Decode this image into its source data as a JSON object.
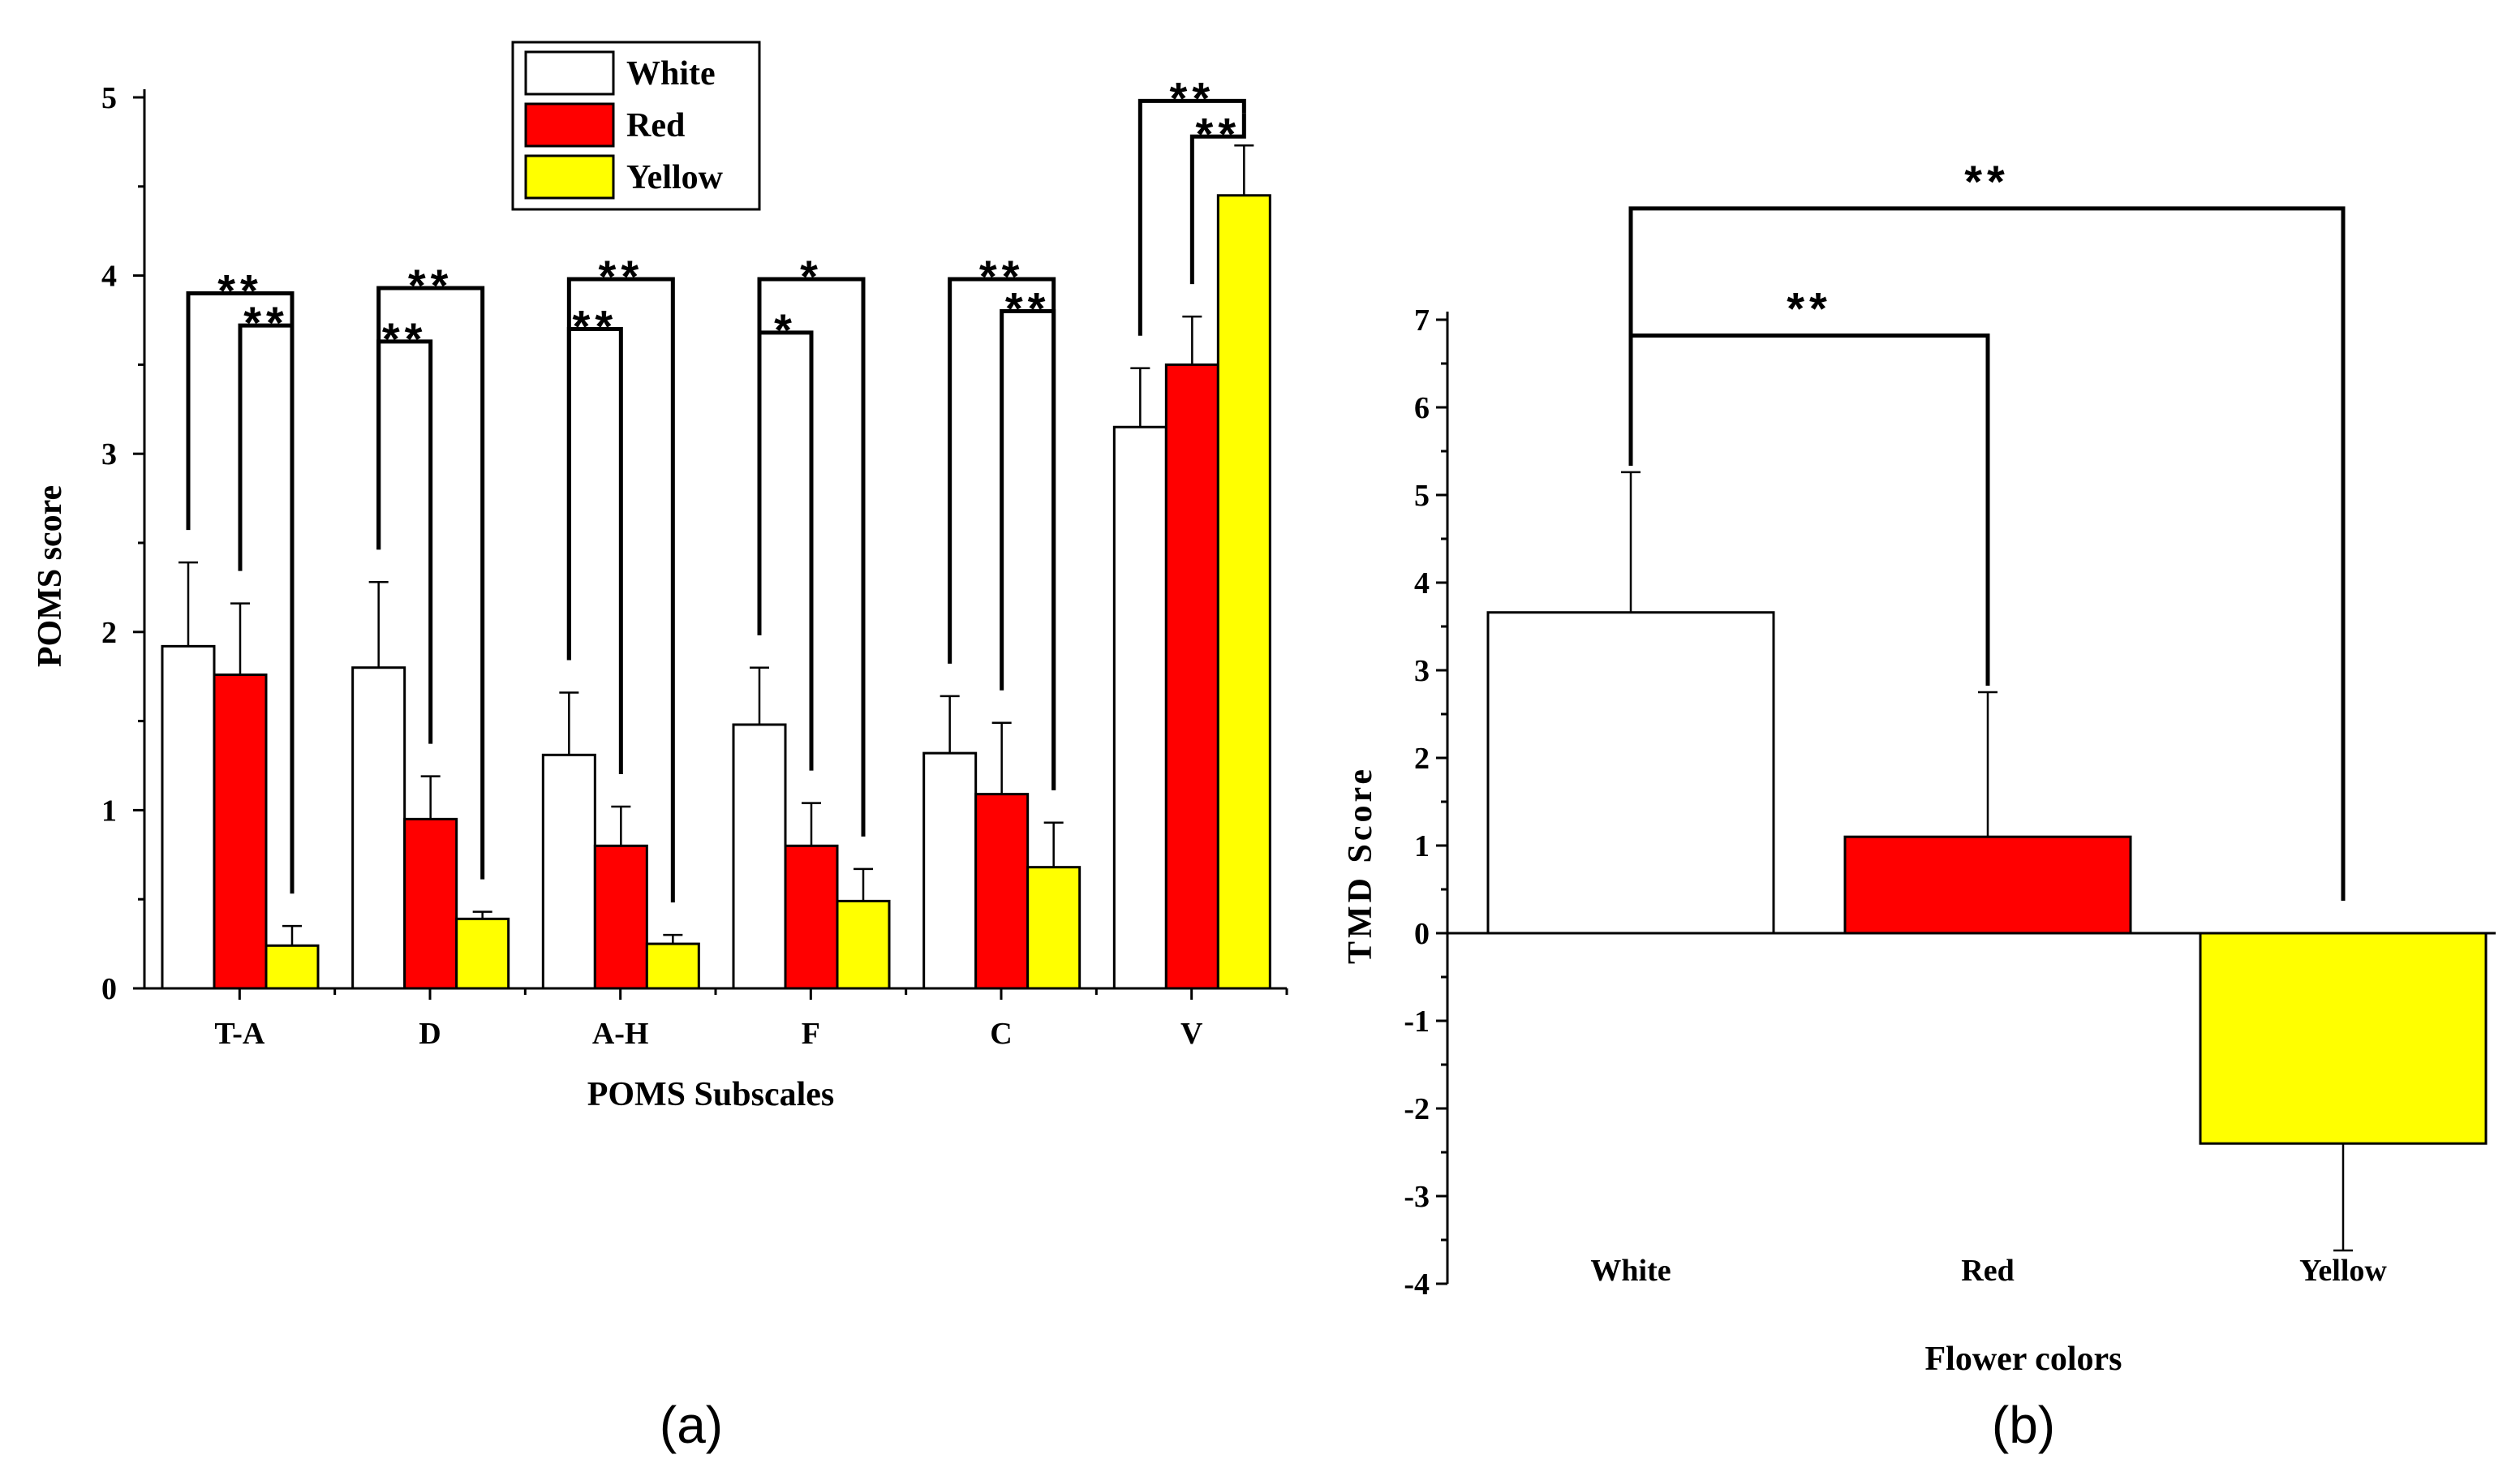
{
  "colors": {
    "White": "#ffffff",
    "Red": "#ff0000",
    "Yellow": "#ffff00",
    "outline": "#000000"
  },
  "chart_data": [
    {
      "type": "bar",
      "panel_label": "(a)",
      "xlabel": "POMS Subscales",
      "ylabel": "POMS score",
      "ylim": [
        0,
        5
      ],
      "yticks": [
        "0",
        "1",
        "2",
        "3",
        "4",
        "5"
      ],
      "categories": [
        "T-A",
        "D",
        "A-H",
        "F",
        "C",
        "V"
      ],
      "legend": [
        "White",
        "Red",
        "Yellow"
      ],
      "legend_position": "top-center",
      "series": [
        {
          "name": "White",
          "values": [
            1.92,
            1.8,
            1.31,
            1.48,
            1.32,
            3.15
          ],
          "errors": [
            0.47,
            0.48,
            0.35,
            0.32,
            0.32,
            0.33
          ]
        },
        {
          "name": "Red",
          "values": [
            1.76,
            0.95,
            0.8,
            0.8,
            1.09,
            3.5
          ],
          "errors": [
            0.4,
            0.24,
            0.22,
            0.24,
            0.4,
            0.27
          ]
        },
        {
          "name": "Yellow",
          "values": [
            0.24,
            0.39,
            0.25,
            0.49,
            0.68,
            4.45
          ],
          "errors": [
            0.11,
            0.04,
            0.05,
            0.18,
            0.25,
            0.28
          ]
        }
      ],
      "significance": [
        {
          "category": "T-A",
          "compare": [
            "White",
            "Yellow"
          ],
          "label": "**",
          "level": 3.9
        },
        {
          "category": "T-A",
          "compare": [
            "Red",
            "Yellow"
          ],
          "label": "**",
          "level": 3.72
        },
        {
          "category": "D",
          "compare": [
            "White",
            "Yellow"
          ],
          "label": "**",
          "level": 3.93
        },
        {
          "category": "D",
          "compare": [
            "White",
            "Red"
          ],
          "label": "**",
          "level": 3.63
        },
        {
          "category": "A-H",
          "compare": [
            "White",
            "Yellow"
          ],
          "label": "**",
          "level": 3.98
        },
        {
          "category": "A-H",
          "compare": [
            "White",
            "Red"
          ],
          "label": "**",
          "level": 3.7
        },
        {
          "category": "F",
          "compare": [
            "White",
            "Yellow"
          ],
          "label": "*",
          "level": 3.98
        },
        {
          "category": "F",
          "compare": [
            "White",
            "Red"
          ],
          "label": "*",
          "level": 3.68
        },
        {
          "category": "C",
          "compare": [
            "White",
            "Yellow"
          ],
          "label": "**",
          "level": 3.98
        },
        {
          "category": "C",
          "compare": [
            "Red",
            "Yellow"
          ],
          "label": "**",
          "level": 3.8
        },
        {
          "category": "V",
          "compare": [
            "White",
            "Yellow"
          ],
          "label": "**",
          "level": 4.98
        },
        {
          "category": "V",
          "compare": [
            "Red",
            "Yellow"
          ],
          "label": "**",
          "level": 4.78
        }
      ]
    },
    {
      "type": "bar",
      "panel_label": "(b)",
      "xlabel": "Flower colors",
      "ylabel": "TMD Score",
      "ylim": [
        -4,
        7
      ],
      "yticks": [
        "-4",
        "-3",
        "-2",
        "-1",
        "0",
        "1",
        "2",
        "3",
        "4",
        "5",
        "6",
        "7"
      ],
      "categories": [
        "White",
        "Red",
        "Yellow"
      ],
      "values": [
        3.66,
        1.1,
        -2.4
      ],
      "errors": [
        1.6,
        1.65,
        1.22
      ],
      "significance": [
        {
          "compare": [
            "White",
            "Yellow"
          ],
          "label": "**",
          "level": 8.27
        },
        {
          "compare": [
            "White",
            "Red"
          ],
          "label": "**",
          "level": 6.82
        }
      ]
    }
  ]
}
